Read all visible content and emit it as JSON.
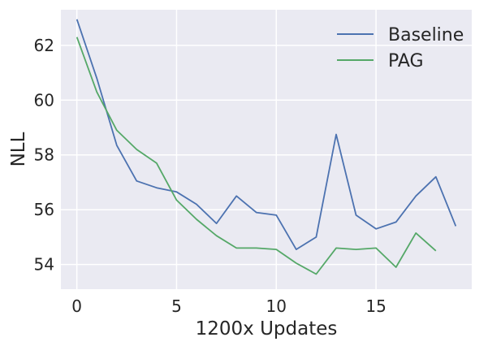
{
  "chart_data": {
    "type": "line",
    "title": "",
    "xlabel": "1200x Updates",
    "ylabel": "NLL",
    "xlim": [
      -0.8,
      19.8
    ],
    "ylim": [
      53.1,
      63.3
    ],
    "xticks": [
      0,
      5,
      10,
      15
    ],
    "yticks": [
      54,
      56,
      58,
      60,
      62
    ],
    "grid": true,
    "legend_position": "top-right",
    "series": [
      {
        "name": "Baseline",
        "color": "#4c72b0",
        "x": [
          0,
          1,
          2,
          3,
          4,
          5,
          6,
          7,
          8,
          9,
          10,
          11,
          12,
          13,
          14,
          15,
          16,
          17,
          18,
          19
        ],
        "values": [
          62.95,
          60.8,
          58.35,
          57.05,
          56.8,
          56.65,
          56.2,
          55.5,
          56.5,
          55.9,
          55.8,
          54.55,
          55.0,
          58.75,
          55.8,
          55.3,
          55.55,
          56.5,
          57.2,
          55.4
        ]
      },
      {
        "name": "PAG",
        "color": "#55a868",
        "x": [
          0,
          1,
          2,
          3,
          4,
          5,
          6,
          7,
          8,
          9,
          10,
          11,
          12,
          13,
          14,
          15,
          16,
          17,
          18
        ],
        "values": [
          62.3,
          60.3,
          58.9,
          58.2,
          57.7,
          56.35,
          55.65,
          55.05,
          54.6,
          54.6,
          54.55,
          54.05,
          53.65,
          54.6,
          54.55,
          54.6,
          53.9,
          55.15,
          54.5
        ]
      }
    ]
  }
}
